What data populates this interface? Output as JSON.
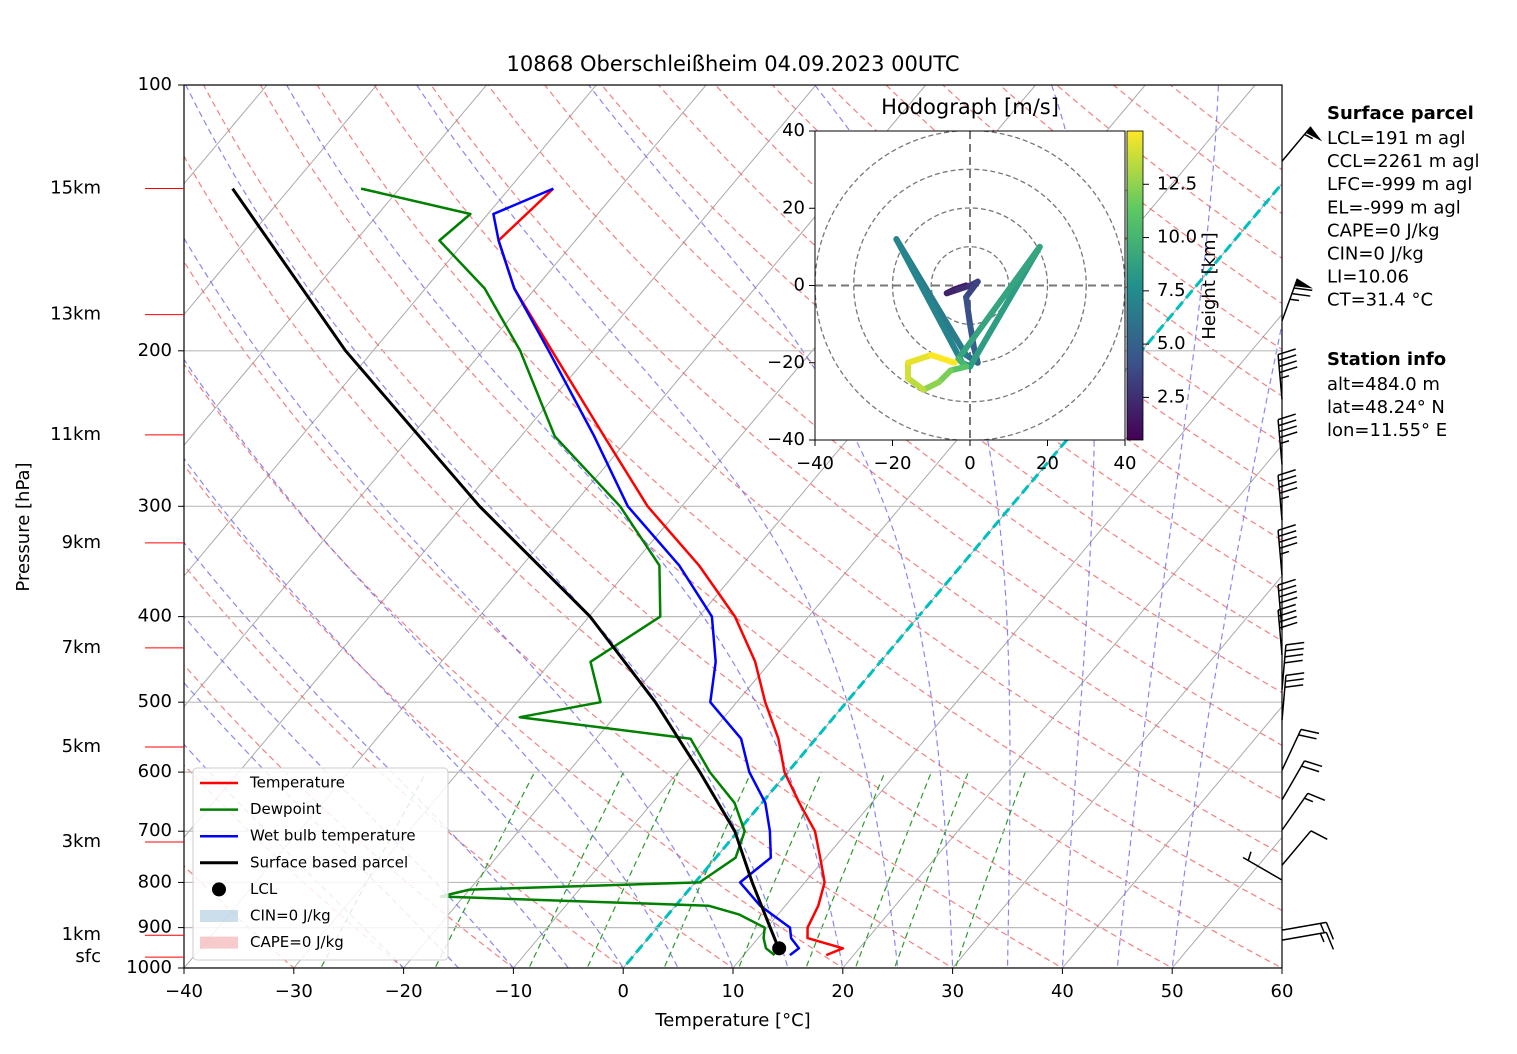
{
  "chart_data": [
    {
      "type": "skewt",
      "title": "10868 Oberschleißheim 04.09.2023 00UTC",
      "xlabel": "Temperature [°C]",
      "ylabel": "Pressure [hPa]",
      "xlim": [
        -40,
        60
      ],
      "xticks": [
        {
          "value": -40,
          "label": "−40"
        },
        {
          "value": -30,
          "label": "−30"
        },
        {
          "value": -20,
          "label": "−20"
        },
        {
          "value": -10,
          "label": "−10"
        },
        0,
        10,
        20,
        30,
        40,
        50,
        60
      ],
      "ylim": [
        1000,
        100
      ],
      "yticks": [
        100,
        200,
        300,
        400,
        500,
        600,
        700,
        800,
        900,
        1000
      ],
      "log_y": true,
      "grid": true,
      "highlight_isotherm": {
        "value": 0,
        "color": "#00bfbf"
      },
      "series": [
        {
          "name": "Temperature",
          "color": "#ff0000",
          "pressure": [
            967,
            950,
            925,
            900,
            850,
            800,
            750,
            700,
            650,
            600,
            550,
            500,
            450,
            400,
            350,
            300,
            250,
            200,
            170,
            150,
            131
          ],
          "values": [
            17.5,
            18.5,
            14.5,
            13.7,
            13.0,
            11.8,
            9.5,
            7.0,
            3.4,
            -0.3,
            -3.4,
            -7.4,
            -11.4,
            -16.7,
            -23.9,
            -33.1,
            -42.4,
            -53.7,
            -61.9,
            -67,
            -66
          ]
        },
        {
          "name": "Dewpoint",
          "color": "#008000",
          "pressure": [
            967,
            950,
            925,
            900,
            870,
            850,
            830,
            815,
            800,
            750,
            700,
            650,
            600,
            550,
            520,
            500,
            450,
            400,
            350,
            300,
            250,
            200,
            170,
            150,
            140,
            131
          ],
          "values": [
            12.8,
            11.5,
            10.5,
            9.8,
            6.5,
            3.0,
            -22.1,
            -20.0,
            0.4,
            1.8,
            0.6,
            -2.5,
            -7.1,
            -11.4,
            -28.6,
            -22.4,
            -26.4,
            -23.5,
            -27.5,
            -35.6,
            -46.9,
            -56.6,
            -64.6,
            -72.4,
            -71.6,
            -83.5
          ]
        },
        {
          "name": "Wet bulb temperature",
          "color": "#0000ff",
          "pressure": [
            967,
            950,
            925,
            900,
            850,
            800,
            750,
            700,
            650,
            600,
            550,
            500,
            450,
            400,
            350,
            300,
            250,
            200,
            170,
            150,
            140,
            131
          ],
          "values": [
            14.2,
            14.5,
            13.0,
            12.1,
            7.7,
            4.1,
            5.0,
            2.9,
            0.3,
            -3.5,
            -6.8,
            -12.4,
            -15.0,
            -18.8,
            -25.7,
            -34.9,
            -43.3,
            -54.0,
            -61.9,
            -67.0,
            -69.5,
            -66.0
          ]
        },
        {
          "name": "Surface based parcel",
          "color": "#000000",
          "width": 3,
          "pressure": [
            960,
            900,
            800,
            700,
            600,
            500,
            400,
            300,
            200,
            131
          ],
          "values": [
            13.1,
            10.3,
            5.2,
            -0.3,
            -8.0,
            -17.4,
            -29.9,
            -48.4,
            -72.5,
            -95.2
          ]
        }
      ],
      "lcl": {
        "name": "LCL",
        "pressure": 950,
        "value": 12.7,
        "color": "#000000"
      },
      "cin": {
        "name": "CIN=0 J/kg",
        "color": "#a6c8e0"
      },
      "cape": {
        "name": "CAPE=0 J/kg",
        "color": "#f2a8a8"
      },
      "height_labels": {
        "labels": [
          "15km",
          "13km",
          "11km",
          "9km",
          "7km",
          "5km",
          "3km",
          "1km",
          "sfc"
        ],
        "pressure": [
          131,
          182,
          249,
          330,
          434,
          562,
          720,
          918,
          972
        ],
        "color": "#ff0000"
      },
      "wind_barbs": {
        "pressure": [
          930,
          906,
          795,
          765,
          698,
          645,
          597,
          524,
          484,
          442,
          414,
          359,
          311,
          269,
          227,
          185,
          122
        ],
        "speed": [
          15,
          15,
          5,
          10,
          15,
          20,
          20,
          30,
          40,
          40,
          40,
          45,
          45,
          45,
          45,
          75,
          55
        ],
        "direction": [
          80,
          80,
          300,
          40,
          35,
          30,
          25,
          5,
          5,
          355,
          355,
          355,
          355,
          355,
          355,
          20,
          40
        ]
      }
    },
    {
      "type": "hodograph",
      "title": "Hodograph [m/s]",
      "xlim": [
        -40,
        40
      ],
      "ylim": [
        -40,
        40
      ],
      "xticks": [
        {
          "value": -40,
          "label": "−40"
        },
        {
          "value": -20,
          "label": "−20"
        },
        0,
        20,
        40
      ],
      "yticks": [
        {
          "value": -40,
          "label": "−40"
        },
        {
          "value": -20,
          "label": "−20"
        },
        0,
        20,
        40
      ],
      "rings": [
        10,
        20,
        30,
        40
      ],
      "u": [
        -1,
        -4,
        -6,
        -3,
        0,
        2,
        -1,
        0,
        1,
        2,
        -1,
        -19,
        -2,
        0,
        18,
        -3,
        -1,
        -5,
        -8,
        -12,
        -16,
        -16,
        -10,
        -4
      ],
      "v": [
        0,
        -1,
        -2,
        -1,
        0,
        1,
        -3,
        -10,
        -16,
        -20,
        -18,
        12,
        -20,
        -21,
        10,
        -19,
        -21,
        -22,
        -25,
        -27,
        -24,
        -20,
        -18,
        -20
      ],
      "height": [
        0.5,
        1,
        1.5,
        2,
        2.5,
        3,
        3.5,
        4,
        4.5,
        5,
        5.5,
        6.5,
        7,
        7.5,
        8.5,
        9,
        10,
        11,
        12,
        12.5,
        13.5,
        14,
        14.5,
        15
      ],
      "colorbar": {
        "label": "Height [km]",
        "lim": [
          0.5,
          15
        ],
        "ticks": [
          2.5,
          {
            "value": 5,
            "label": "5.0"
          },
          7.5,
          {
            "value": 10,
            "label": "10.0"
          },
          12.5
        ]
      }
    }
  ],
  "info": {
    "surface_parcel": {
      "title": "Surface parcel",
      "lines": [
        "LCL=191 m agl",
        "CCL=2261 m agl",
        "LFC=-999 m agl",
        "EL=-999 m agl",
        "CAPE=0 J/kg",
        "CIN=0 J/kg",
        "LI=10.06",
        "CT=31.4 °C"
      ]
    },
    "station_info": {
      "title": "Station info",
      "lines": [
        "alt=484.0 m",
        "lat=48.24° N",
        "lon=11.55° E"
      ]
    }
  }
}
